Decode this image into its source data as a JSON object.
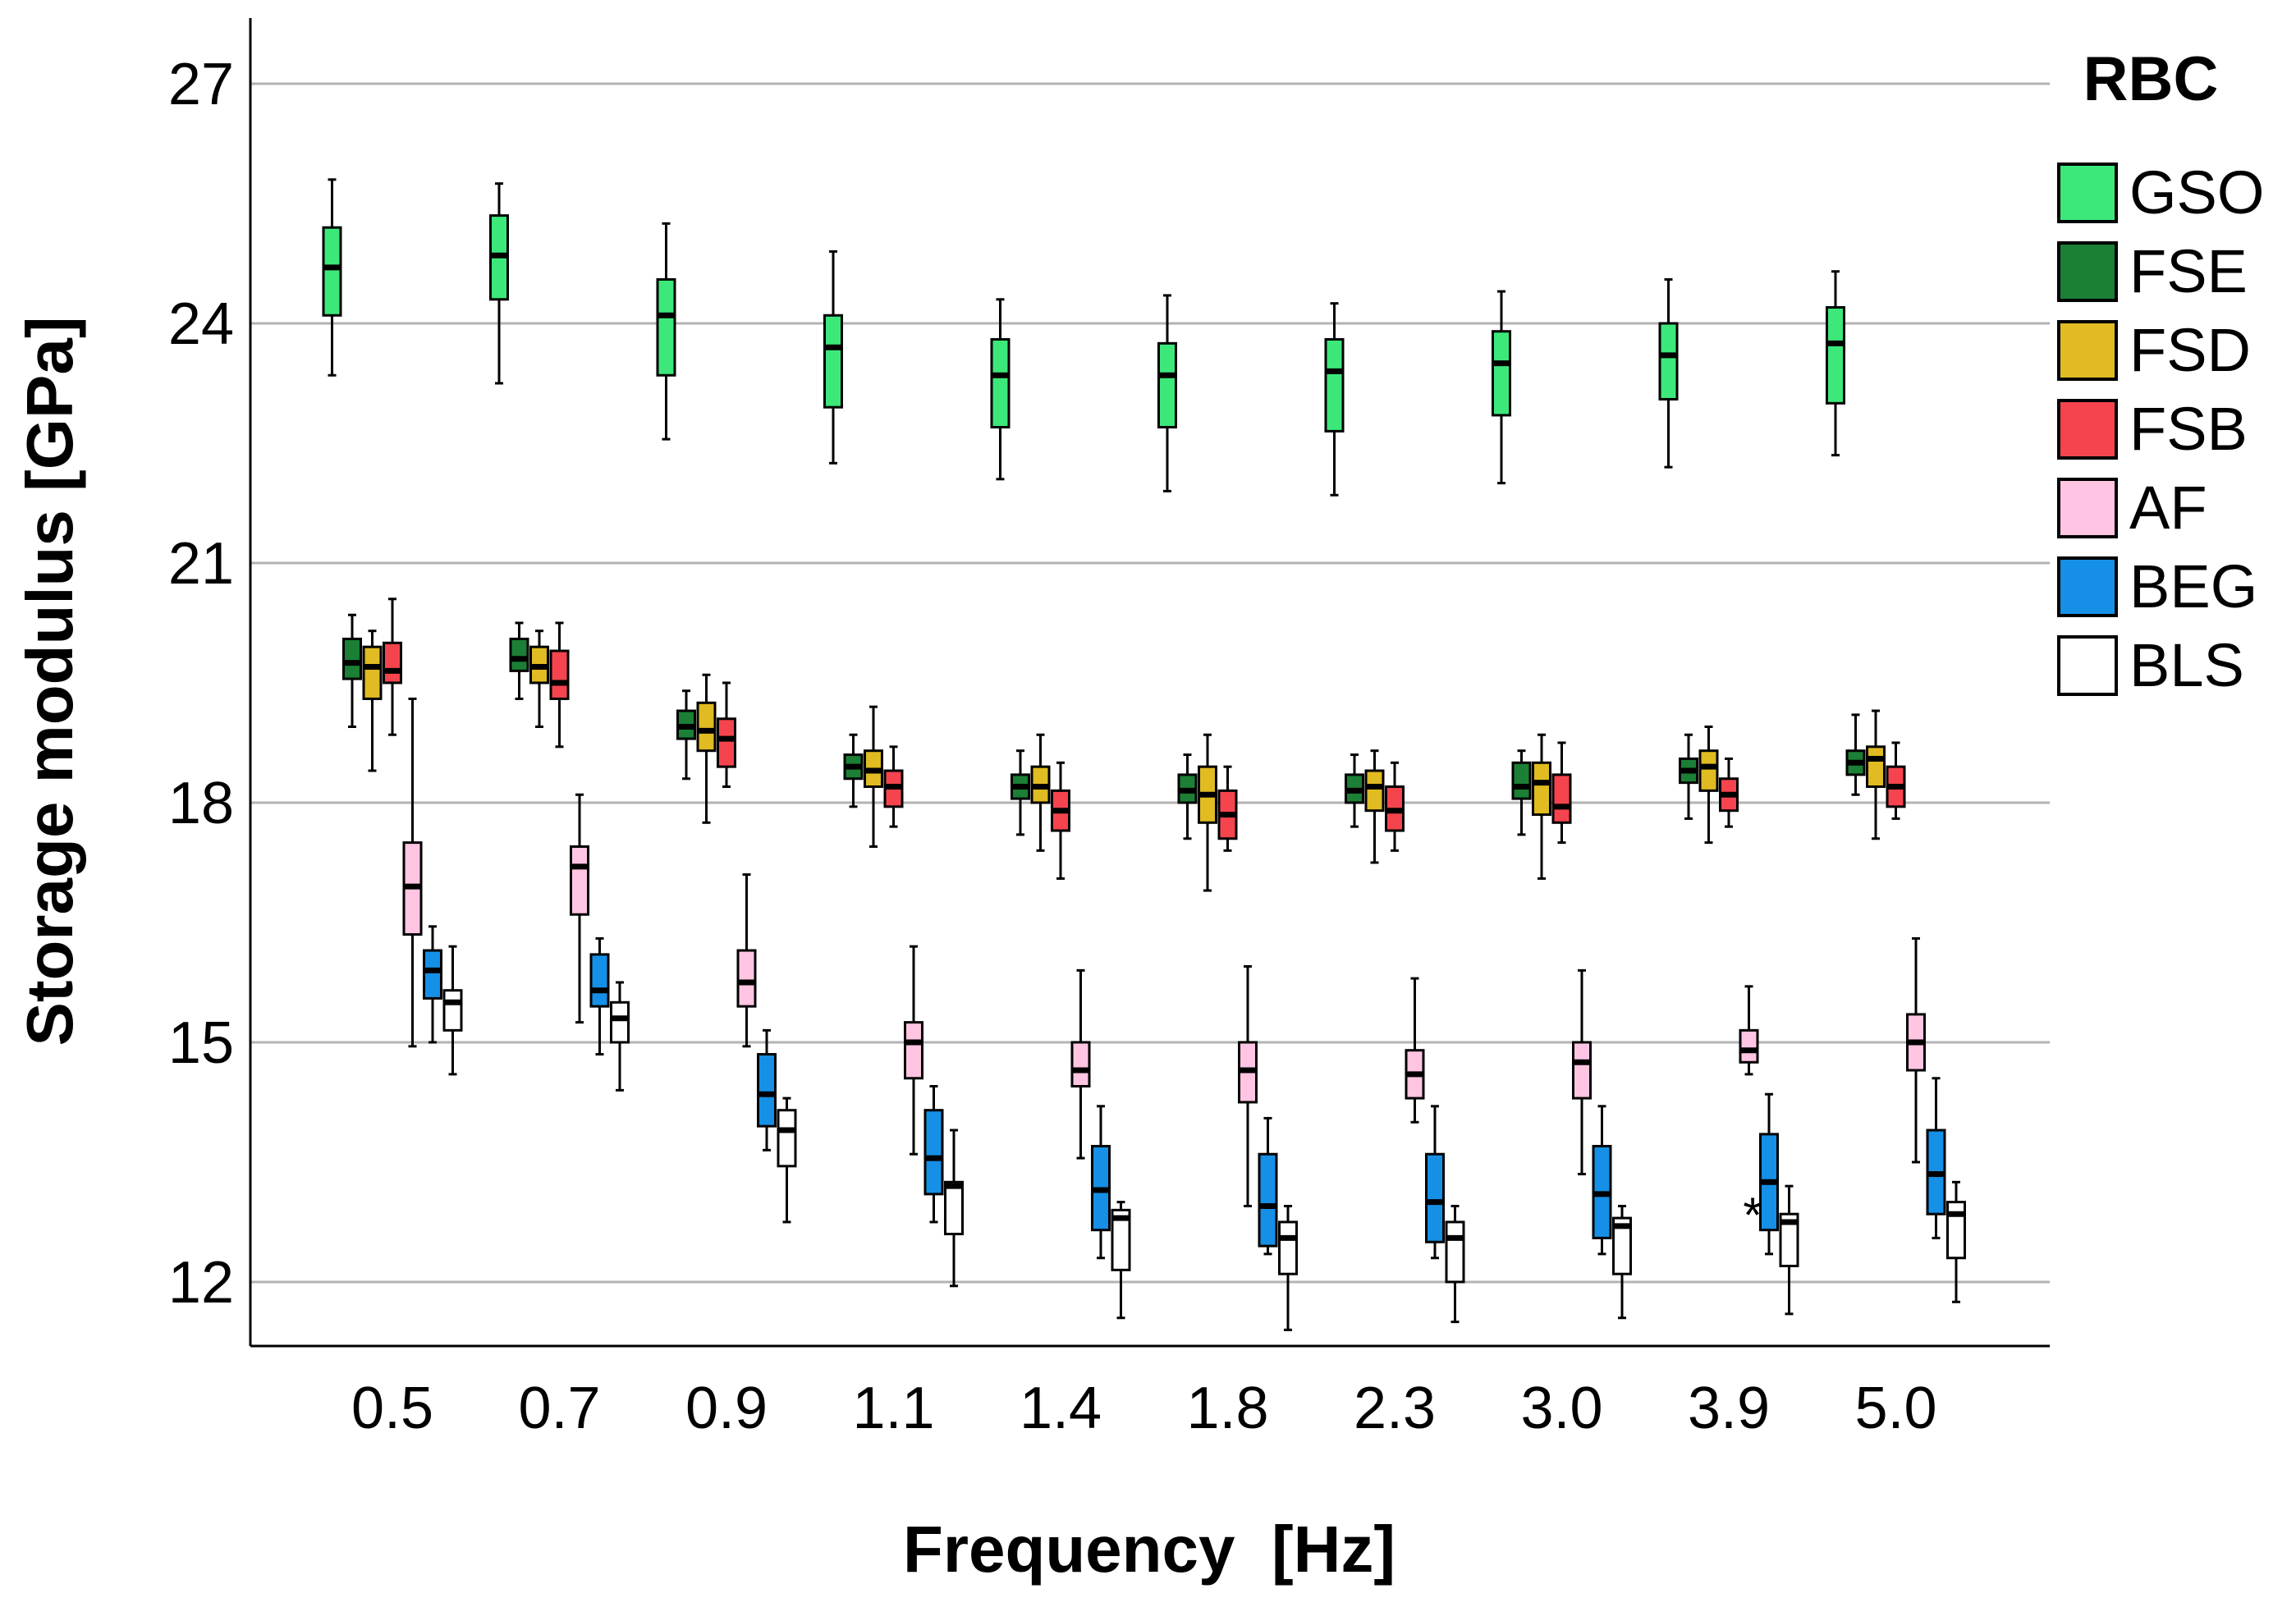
{
  "chart_data": {
    "type": "boxplot",
    "title": "",
    "xlabel": "Frequency  [Hz]",
    "ylabel": "Storage modulus [GPa]",
    "ylim": [
      11.2,
      27.8
    ],
    "yticks": [
      12,
      15,
      18,
      21,
      24,
      27
    ],
    "grid": "horizontal",
    "legend_title": "RBC",
    "legend_position": "right",
    "categories": [
      "0.5",
      "0.7",
      "0.9",
      "1.1",
      "1.4",
      "1.8",
      "2.3",
      "3.0",
      "3.9",
      "5.0"
    ],
    "series": [
      {
        "name": "GSO",
        "color": "#3de87a",
        "boxes": [
          [
            23.35,
            24.1,
            24.7,
            25.2,
            25.8
          ],
          [
            23.25,
            24.3,
            24.85,
            25.35,
            25.75
          ],
          [
            22.55,
            23.35,
            24.1,
            24.55,
            25.25
          ],
          [
            22.25,
            22.95,
            23.7,
            24.1,
            24.9
          ],
          [
            22.05,
            22.7,
            23.35,
            23.8,
            24.3
          ],
          [
            21.9,
            22.7,
            23.35,
            23.75,
            24.35
          ],
          [
            21.85,
            22.65,
            23.4,
            23.8,
            24.25
          ],
          [
            22.0,
            22.85,
            23.5,
            23.9,
            24.4
          ],
          [
            22.2,
            23.05,
            23.6,
            24.0,
            24.55
          ],
          [
            22.35,
            23.0,
            23.75,
            24.2,
            24.65
          ]
        ]
      },
      {
        "name": "FSE",
        "color": "#1b7f35",
        "boxes": [
          [
            18.95,
            19.55,
            19.75,
            20.05,
            20.35
          ],
          [
            19.3,
            19.65,
            19.8,
            20.05,
            20.25
          ],
          [
            18.3,
            18.8,
            18.95,
            19.15,
            19.4
          ],
          [
            17.95,
            18.3,
            18.45,
            18.6,
            18.85
          ],
          [
            17.6,
            18.05,
            18.2,
            18.35,
            18.65
          ],
          [
            17.55,
            18.0,
            18.15,
            18.35,
            18.6
          ],
          [
            17.7,
            18.0,
            18.15,
            18.35,
            18.6
          ],
          [
            17.6,
            18.05,
            18.2,
            18.5,
            18.65
          ],
          [
            17.8,
            18.25,
            18.4,
            18.55,
            18.85
          ],
          [
            18.1,
            18.35,
            18.5,
            18.65,
            19.1
          ]
        ]
      },
      {
        "name": "FSD",
        "color": "#e0bb22",
        "boxes": [
          [
            18.4,
            19.3,
            19.7,
            19.95,
            20.15
          ],
          [
            18.95,
            19.5,
            19.7,
            19.95,
            20.15
          ],
          [
            17.75,
            18.65,
            18.9,
            19.25,
            19.6
          ],
          [
            17.45,
            18.2,
            18.4,
            18.65,
            19.2
          ],
          [
            17.4,
            18.0,
            18.2,
            18.45,
            18.85
          ],
          [
            16.9,
            17.75,
            18.1,
            18.45,
            18.85
          ],
          [
            17.25,
            17.9,
            18.2,
            18.4,
            18.65
          ],
          [
            17.05,
            17.85,
            18.25,
            18.5,
            18.85
          ],
          [
            17.5,
            18.15,
            18.45,
            18.65,
            18.95
          ],
          [
            17.55,
            18.2,
            18.55,
            18.7,
            19.15
          ]
        ]
      },
      {
        "name": "FSB",
        "color": "#f5444e",
        "boxes": [
          [
            18.85,
            19.5,
            19.65,
            20.0,
            20.55
          ],
          [
            18.7,
            19.3,
            19.5,
            19.9,
            20.25
          ],
          [
            18.2,
            18.45,
            18.8,
            19.05,
            19.5
          ],
          [
            17.7,
            17.95,
            18.2,
            18.4,
            18.7
          ],
          [
            17.05,
            17.65,
            17.9,
            18.15,
            18.5
          ],
          [
            17.4,
            17.55,
            17.85,
            18.15,
            18.45
          ],
          [
            17.4,
            17.65,
            17.9,
            18.2,
            18.5
          ],
          [
            17.5,
            17.75,
            17.95,
            18.35,
            18.75
          ],
          [
            17.7,
            17.9,
            18.1,
            18.3,
            18.55
          ],
          [
            17.8,
            17.95,
            18.2,
            18.45,
            18.75
          ]
        ]
      },
      {
        "name": "AF",
        "color": "#ffc5e2",
        "boxes": [
          [
            14.95,
            16.35,
            16.95,
            17.5,
            19.3
          ],
          [
            15.25,
            16.6,
            17.2,
            17.45,
            18.1
          ],
          [
            14.95,
            15.45,
            15.75,
            16.15,
            17.1
          ],
          [
            13.6,
            14.55,
            15.0,
            15.25,
            16.2
          ],
          [
            13.55,
            14.45,
            14.65,
            15.0,
            15.9
          ],
          [
            12.95,
            14.25,
            14.65,
            15.0,
            15.95
          ],
          [
            14.0,
            14.3,
            14.6,
            14.9,
            15.8
          ],
          [
            13.35,
            14.3,
            14.75,
            15.0,
            15.9
          ],
          [
            14.6,
            14.75,
            14.9,
            15.15,
            15.7
          ],
          [
            13.5,
            14.65,
            15.0,
            15.35,
            16.3
          ]
        ]
      },
      {
        "name": "BEG",
        "color": "#1590e6",
        "boxes": [
          [
            15.0,
            15.55,
            15.9,
            16.15,
            16.45
          ],
          [
            14.85,
            15.45,
            15.65,
            16.1,
            16.3
          ],
          [
            13.65,
            13.95,
            14.35,
            14.85,
            15.15
          ],
          [
            12.75,
            13.1,
            13.55,
            14.15,
            14.45
          ],
          [
            12.3,
            12.65,
            13.15,
            13.7,
            14.2
          ],
          [
            12.35,
            12.45,
            12.95,
            13.6,
            14.05
          ],
          [
            12.3,
            12.5,
            13.0,
            13.6,
            14.2
          ],
          [
            12.35,
            12.55,
            13.1,
            13.7,
            14.2
          ],
          [
            12.35,
            12.65,
            13.25,
            13.85,
            14.35
          ],
          [
            12.55,
            12.85,
            13.35,
            13.9,
            14.55
          ]
        ]
      },
      {
        "name": "BLS",
        "color": "#ffffff",
        "boxes": [
          [
            14.6,
            15.15,
            15.5,
            15.65,
            16.2
          ],
          [
            14.4,
            15.0,
            15.3,
            15.5,
            15.75
          ],
          [
            12.75,
            13.45,
            13.9,
            14.15,
            14.3
          ],
          [
            11.95,
            12.6,
            13.2,
            13.25,
            13.9
          ],
          [
            11.55,
            12.15,
            12.8,
            12.9,
            13.0
          ],
          [
            11.4,
            12.1,
            12.55,
            12.75,
            12.95
          ],
          [
            11.5,
            12.0,
            12.55,
            12.75,
            12.95
          ],
          [
            11.55,
            12.1,
            12.7,
            12.8,
            12.95
          ],
          [
            11.6,
            12.2,
            12.75,
            12.85,
            13.2
          ],
          [
            11.75,
            12.3,
            12.85,
            13.0,
            13.25
          ]
        ]
      }
    ],
    "annotations": [
      {
        "text": "*",
        "category": "3.9",
        "series": "BEG",
        "value": 12.85
      }
    ]
  }
}
